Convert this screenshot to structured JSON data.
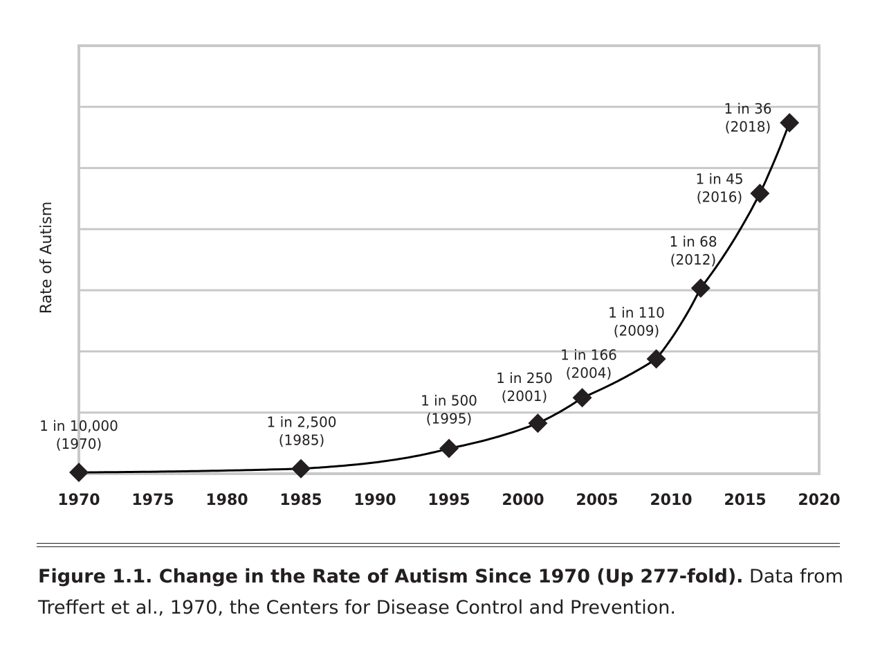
{
  "chart_data": {
    "type": "line",
    "ylabel": "Rate of Autism",
    "x_ticks": [
      "1970",
      "1975",
      "1980",
      "1985",
      "1990",
      "1995",
      "2000",
      "2005",
      "2010",
      "2015",
      "2020"
    ],
    "xlim": [
      1970,
      2020
    ],
    "grid": true,
    "points": [
      {
        "year": 1970,
        "rate": 0.0001,
        "label": "1 in 10,000",
        "year_label": "(1970)"
      },
      {
        "year": 1985,
        "rate": 0.0004,
        "label": "1 in 2,500",
        "year_label": "(1985)"
      },
      {
        "year": 1995,
        "rate": 0.002,
        "label": "1 in 500",
        "year_label": "(1995)"
      },
      {
        "year": 2001,
        "rate": 0.004,
        "label": "1 in 250",
        "year_label": "(2001)"
      },
      {
        "year": 2004,
        "rate": 0.00602,
        "label": "1 in 166",
        "year_label": "(2004)"
      },
      {
        "year": 2009,
        "rate": 0.00909,
        "label": "1 in 110",
        "year_label": "(2009)"
      },
      {
        "year": 2012,
        "rate": 0.0147,
        "label": "1 in 68",
        "year_label": "(2012)"
      },
      {
        "year": 2016,
        "rate": 0.0222,
        "label": "1 in 45",
        "year_label": "(2016)"
      },
      {
        "year": 2018,
        "rate": 0.0278,
        "label": "1 in 36",
        "year_label": "(2018)"
      }
    ]
  },
  "caption": {
    "bold": "Figure 1.1. Change in the Rate of Autism Since 1970 (Up 277-fold).",
    "text": " Data from Treffert et al., 1970, the Centers for Disease Control and Prevention."
  }
}
